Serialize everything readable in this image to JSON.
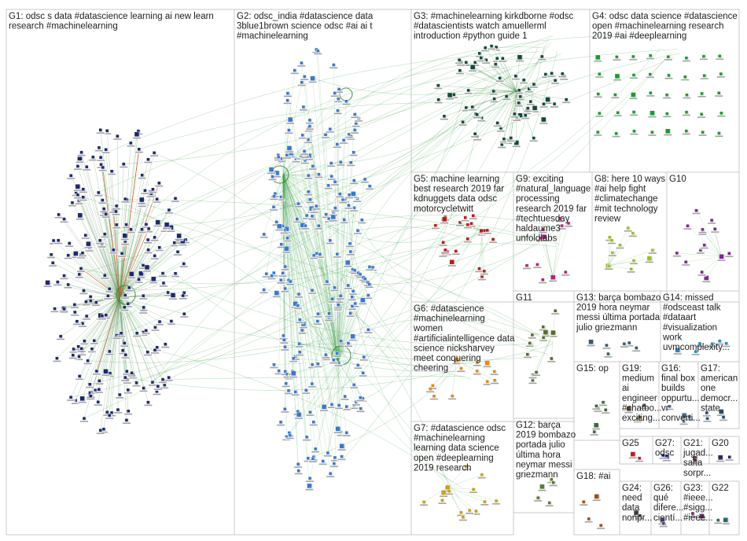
{
  "groups": [
    {
      "id": "G1",
      "lines": [
        "G1: odsc s data #datascience learning ai new learn",
        "research #machinelearning"
      ],
      "color": "#1b2a6b",
      "ncount": 210,
      "seed": 1
    },
    {
      "id": "G2",
      "lines": [
        "G2: odsc_india #datascience data",
        "3blue1brown science odsc #ai ai t",
        "#machinelearning"
      ],
      "color": "#3a78c9",
      "ncount": 230,
      "seed": 2
    },
    {
      "id": "G3",
      "lines": [
        "G3: #machinelearning kirkdborne #odsc",
        "#datascientists watch amuellerml",
        "introduction #python guide 1"
      ],
      "color": "#0f4a3a",
      "ncount": 70,
      "seed": 3
    },
    {
      "id": "G4",
      "lines": [
        "G4: odsc data science #datascience",
        "open #machinelearning research",
        "2019 #ai #deeplearning"
      ],
      "color": "#1f9a2f",
      "ncount": 40,
      "seed": 4
    },
    {
      "id": "G5",
      "lines": [
        "G5: machine learning",
        "best research 2019 far",
        "kdnuggets data odsc",
        "motorcycletwitt"
      ],
      "color": "#b51c1c",
      "ncount": 22,
      "seed": 5
    },
    {
      "id": "G9",
      "lines": [
        "G9: exciting",
        "#natural_language",
        "processing",
        "research 2019 far",
        "#techtuesday",
        "haldaume3",
        "unfoldlabs"
      ],
      "color": "#b0287a",
      "ncount": 12,
      "seed": 9
    },
    {
      "id": "G8",
      "lines": [
        "G8: here 10 ways",
        "#ai help fight",
        "#climatechange",
        "#mit technology",
        "review"
      ],
      "color": "#9bbf2a",
      "ncount": 12,
      "seed": 8
    },
    {
      "id": "G10",
      "lines": [
        "G10"
      ],
      "color": "#7a2a8a",
      "ncount": 14,
      "seed": 10
    },
    {
      "id": "G6",
      "lines": [
        "G6: #datascience",
        "#machinelearning",
        "women",
        "#artificialintelligence data",
        "science nicksharvey",
        "meet conquering",
        "cheering"
      ],
      "color": "#e08a1a",
      "ncount": 12,
      "seed": 6
    },
    {
      "id": "G11",
      "lines": [
        "G11"
      ],
      "color": "#556b2f",
      "ncount": 12,
      "seed": 11
    },
    {
      "id": "G13",
      "lines": [
        "G13: barça bombazo",
        "2019 hora neymar",
        "messi última portada",
        "julio griezmann"
      ],
      "color": "#3a5a6a",
      "ncount": 6,
      "seed": 13
    },
    {
      "id": "G14",
      "lines": [
        "G14: missed",
        "#odsceast talk",
        "#dataart",
        "#visualization",
        "work",
        "uvmcomplexity..."
      ],
      "color": "#2a8ab8",
      "ncount": 6,
      "seed": 14
    },
    {
      "id": "G15",
      "lines": [
        "G15: op"
      ],
      "color": "#3a6a3a",
      "ncount": 6,
      "seed": 15
    },
    {
      "id": "G19",
      "lines": [
        "G19:",
        "medium",
        "ai",
        "engineer",
        "#chatbo...",
        "exciting..."
      ],
      "color": "#6a4a2a",
      "ncount": 4,
      "seed": 19
    },
    {
      "id": "G16",
      "lines": [
        "G16:",
        "final box",
        "builds",
        "oppurtu...",
        "vr",
        "converti..."
      ],
      "color": "#4a6a8a",
      "ncount": 4,
      "seed": 16
    },
    {
      "id": "G17",
      "lines": [
        "G17:",
        "american",
        "one",
        "democr...",
        "state"
      ],
      "color": "#2a4a6a",
      "ncount": 4,
      "seed": 17
    },
    {
      "id": "G7",
      "lines": [
        "G7: #datascience odsc",
        "#machinelearning",
        "learning data science",
        "open #deeplearning",
        "2019 research"
      ],
      "color": "#c8a01a",
      "ncount": 14,
      "seed": 7
    },
    {
      "id": "G12",
      "lines": [
        "G12: barça",
        "2019 bombazo",
        "portada julio",
        "última hora",
        "neymar messi",
        "griezmann"
      ],
      "color": "#5a7a3a",
      "ncount": 6,
      "seed": 12
    },
    {
      "id": "G25",
      "lines": [
        "G25"
      ],
      "color": "#b52020",
      "ncount": 2,
      "seed": 25
    },
    {
      "id": "G27",
      "lines": [
        "G27:",
        "odsc"
      ],
      "color": "#20208a",
      "ncount": 2,
      "seed": 27
    },
    {
      "id": "G21",
      "lines": [
        "G21:",
        "jugad...",
        "salta",
        "sorpr..."
      ],
      "color": "#5a2a2a",
      "ncount": 2,
      "seed": 21
    },
    {
      "id": "G20",
      "lines": [
        "G20"
      ],
      "color": "#2a2a5a",
      "ncount": 2,
      "seed": 20
    },
    {
      "id": "G18",
      "lines": [
        "G18: #ai"
      ],
      "color": "#a0501a",
      "ncount": 4,
      "seed": 18
    },
    {
      "id": "G24",
      "lines": [
        "G24:",
        "need",
        "data",
        "nonpr..."
      ],
      "color": "#3a3a3a",
      "ncount": 2,
      "seed": 24
    },
    {
      "id": "G26",
      "lines": [
        "G26:",
        "qué",
        "difere...",
        "cientí..."
      ],
      "color": "#4a4a7a",
      "ncount": 2,
      "seed": 26
    },
    {
      "id": "G23",
      "lines": [
        "G23:",
        "#ieee...",
        "#sigg...",
        "#ieee..."
      ],
      "color": "#6a2a6a",
      "ncount": 2,
      "seed": 23
    },
    {
      "id": "G22",
      "lines": [
        "G22"
      ],
      "color": "#2a6a6a",
      "ncount": 2,
      "seed": 22
    }
  ]
}
